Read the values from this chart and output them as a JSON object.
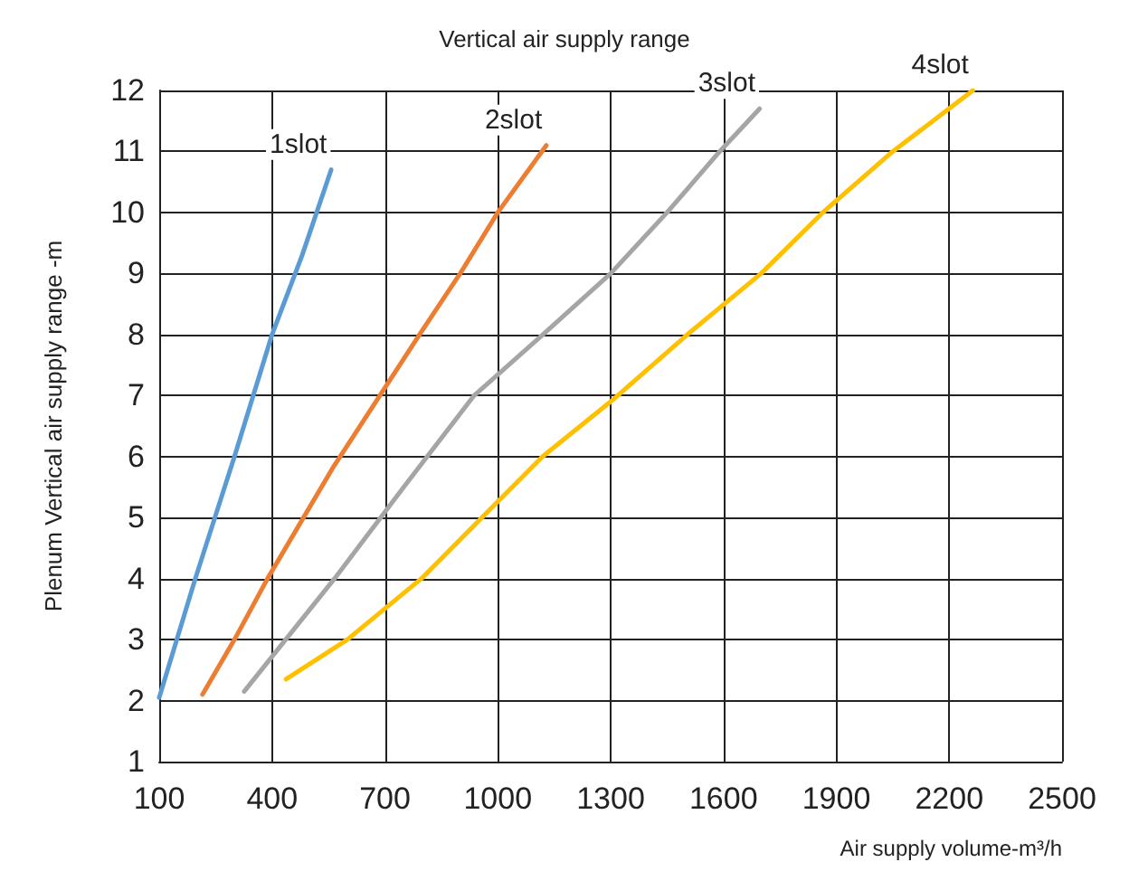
{
  "chart_data": {
    "type": "line",
    "title": "Vertical air supply range",
    "xlabel": "Air supply volume-m³/h",
    "ylabel": "Plenum Vertical air supply range -m",
    "xlim": [
      100,
      2500
    ],
    "xticks": [
      100,
      400,
      700,
      1000,
      1300,
      1600,
      1900,
      2200,
      2500
    ],
    "ylim": [
      1,
      12
    ],
    "yticks": [
      1,
      2,
      3,
      4,
      5,
      6,
      7,
      8,
      9,
      10,
      11,
      12
    ],
    "grid": true,
    "legend": false,
    "marker": "none",
    "line_style": "solid",
    "series": [
      {
        "name": "1slot",
        "color": "#5b9bd5",
        "x": [
          100,
          196,
          300,
          400,
          480,
          557
        ],
        "values": [
          2.05,
          4,
          6,
          8,
          9.3,
          10.7
        ]
      },
      {
        "name": "2slot",
        "color": "#ed7d31",
        "x": [
          215,
          300,
          388,
          560,
          792,
          900,
          1000,
          1129
        ],
        "values": [
          2.1,
          3,
          4,
          5.8,
          8,
          9,
          10,
          11.1
        ]
      },
      {
        "name": "3slot",
        "color": "#a5a5a5",
        "x": [
          326,
          566,
          750,
          937,
          1120,
          1300,
          1450,
          1590,
          1696
        ],
        "values": [
          2.15,
          4,
          5.5,
          7,
          8,
          9,
          10,
          11,
          11.7
        ]
      },
      {
        "name": "4slot",
        "color": "#ffc000",
        "x": [
          437,
          600,
          797,
          1119,
          1300,
          1504,
          1700,
          1864,
          2050,
          2263
        ],
        "values": [
          2.35,
          3,
          4,
          6,
          6.9,
          8,
          9,
          10,
          11,
          12
        ]
      }
    ]
  }
}
